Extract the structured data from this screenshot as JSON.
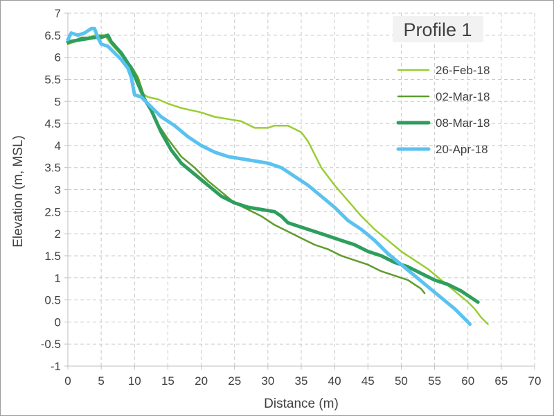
{
  "chart_data": {
    "type": "line",
    "title": "Profile 1",
    "xlabel": "Distance (m)",
    "ylabel": "Elevation (m, MSL)",
    "xlim": [
      0,
      70
    ],
    "ylim": [
      -1,
      7
    ],
    "xticks": [
      0,
      5,
      10,
      15,
      20,
      25,
      30,
      35,
      40,
      45,
      50,
      55,
      60,
      65,
      70
    ],
    "yticks": [
      -1,
      -0.5,
      0,
      0.5,
      1,
      1.5,
      2,
      2.5,
      3,
      3.5,
      4,
      4.5,
      5,
      5.5,
      6,
      6.5,
      7
    ],
    "ytick_labels": [
      "-1",
      "-0.5",
      "0",
      "0.5",
      "1",
      "1.5",
      "2",
      "2.5",
      "3",
      "3.5",
      "4",
      "4.5",
      "5",
      "5.5",
      "6",
      "6.5",
      "7"
    ],
    "grid": "dashed",
    "legend_position": "top-right",
    "series": [
      {
        "name": "26-Feb-18",
        "color": "#9acd32",
        "points": [
          [
            0,
            6.3
          ],
          [
            2,
            6.4
          ],
          [
            4,
            6.5
          ],
          [
            5.5,
            6.5
          ],
          [
            6.5,
            6.3
          ],
          [
            8,
            6.05
          ],
          [
            9.5,
            5.75
          ],
          [
            11,
            5.2
          ],
          [
            12,
            5.1
          ],
          [
            13.5,
            5.05
          ],
          [
            15,
            4.95
          ],
          [
            17,
            4.85
          ],
          [
            20,
            4.75
          ],
          [
            22,
            4.65
          ],
          [
            24,
            4.6
          ],
          [
            26,
            4.55
          ],
          [
            28,
            4.4
          ],
          [
            30,
            4.4
          ],
          [
            31,
            4.45
          ],
          [
            33,
            4.45
          ],
          [
            35,
            4.3
          ],
          [
            36,
            4.1
          ],
          [
            37,
            3.8
          ],
          [
            38,
            3.5
          ],
          [
            40,
            3.1
          ],
          [
            42,
            2.75
          ],
          [
            44,
            2.4
          ],
          [
            46,
            2.1
          ],
          [
            48,
            1.85
          ],
          [
            50,
            1.6
          ],
          [
            52,
            1.4
          ],
          [
            54,
            1.2
          ],
          [
            56,
            0.95
          ],
          [
            58,
            0.7
          ],
          [
            60,
            0.45
          ],
          [
            61,
            0.3
          ],
          [
            62,
            0.1
          ],
          [
            63,
            -0.05
          ]
        ]
      },
      {
        "name": "02-Mar-18",
        "color": "#5e9c2e",
        "points": [
          [
            0,
            6.3
          ],
          [
            2,
            6.45
          ],
          [
            4,
            6.45
          ],
          [
            5,
            6.5
          ],
          [
            6,
            6.45
          ],
          [
            7,
            6.3
          ],
          [
            8,
            6.05
          ],
          [
            9.5,
            5.8
          ],
          [
            10.5,
            5.55
          ],
          [
            11.5,
            5.1
          ],
          [
            13,
            4.6
          ],
          [
            15,
            4.15
          ],
          [
            17,
            3.75
          ],
          [
            19,
            3.5
          ],
          [
            21,
            3.2
          ],
          [
            23,
            2.95
          ],
          [
            25,
            2.7
          ],
          [
            27,
            2.55
          ],
          [
            29,
            2.4
          ],
          [
            31,
            2.2
          ],
          [
            33,
            2.05
          ],
          [
            35,
            1.9
          ],
          [
            37,
            1.75
          ],
          [
            39,
            1.65
          ],
          [
            41,
            1.5
          ],
          [
            43,
            1.4
          ],
          [
            45,
            1.3
          ],
          [
            47,
            1.15
          ],
          [
            49,
            1.05
          ],
          [
            51,
            0.95
          ],
          [
            52,
            0.85
          ],
          [
            53,
            0.75
          ],
          [
            53.5,
            0.65
          ]
        ]
      },
      {
        "name": "08-Mar-18",
        "color": "#2e9e5e",
        "points": [
          [
            0,
            6.35
          ],
          [
            2,
            6.4
          ],
          [
            4,
            6.45
          ],
          [
            5,
            6.45
          ],
          [
            6,
            6.5
          ],
          [
            6.5,
            6.35
          ],
          [
            8,
            6.1
          ],
          [
            9.5,
            5.75
          ],
          [
            10.5,
            5.4
          ],
          [
            11.5,
            5.05
          ],
          [
            12.5,
            4.8
          ],
          [
            14,
            4.3
          ],
          [
            15.5,
            3.9
          ],
          [
            17,
            3.6
          ],
          [
            19,
            3.35
          ],
          [
            21,
            3.1
          ],
          [
            23,
            2.85
          ],
          [
            25,
            2.7
          ],
          [
            27,
            2.6
          ],
          [
            29,
            2.55
          ],
          [
            31,
            2.5
          ],
          [
            32,
            2.4
          ],
          [
            33,
            2.25
          ],
          [
            35,
            2.15
          ],
          [
            37,
            2.05
          ],
          [
            39,
            1.95
          ],
          [
            41,
            1.85
          ],
          [
            43,
            1.75
          ],
          [
            45,
            1.6
          ],
          [
            47,
            1.5
          ],
          [
            49,
            1.35
          ],
          [
            51,
            1.25
          ],
          [
            53,
            1.1
          ],
          [
            55,
            0.95
          ],
          [
            57,
            0.85
          ],
          [
            59,
            0.7
          ],
          [
            60,
            0.6
          ],
          [
            61,
            0.5
          ],
          [
            61.5,
            0.45
          ]
        ]
      },
      {
        "name": "20-Apr-18",
        "color": "#5bc2f0",
        "points": [
          [
            0,
            6.4
          ],
          [
            0.5,
            6.55
          ],
          [
            1.5,
            6.5
          ],
          [
            2.5,
            6.55
          ],
          [
            3.5,
            6.65
          ],
          [
            4,
            6.65
          ],
          [
            4.5,
            6.45
          ],
          [
            5,
            6.3
          ],
          [
            6,
            6.25
          ],
          [
            7,
            6.1
          ],
          [
            8,
            5.95
          ],
          [
            9,
            5.75
          ],
          [
            9.5,
            5.55
          ],
          [
            10,
            5.15
          ],
          [
            11,
            5.1
          ],
          [
            12,
            4.95
          ],
          [
            14,
            4.65
          ],
          [
            16,
            4.45
          ],
          [
            18,
            4.2
          ],
          [
            20,
            4.0
          ],
          [
            22,
            3.85
          ],
          [
            24,
            3.75
          ],
          [
            26,
            3.7
          ],
          [
            28,
            3.65
          ],
          [
            30,
            3.6
          ],
          [
            32,
            3.5
          ],
          [
            34,
            3.3
          ],
          [
            36,
            3.1
          ],
          [
            38,
            2.85
          ],
          [
            40,
            2.6
          ],
          [
            42,
            2.3
          ],
          [
            44,
            2.1
          ],
          [
            46,
            1.85
          ],
          [
            48,
            1.55
          ],
          [
            50,
            1.3
          ],
          [
            52,
            1.05
          ],
          [
            54,
            0.8
          ],
          [
            56,
            0.55
          ],
          [
            58,
            0.3
          ],
          [
            59,
            0.15
          ],
          [
            60,
            0.0
          ],
          [
            60.3,
            -0.05
          ]
        ]
      }
    ]
  }
}
